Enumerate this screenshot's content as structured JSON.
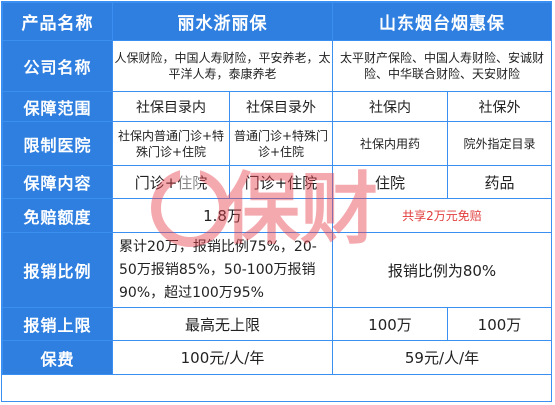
{
  "header": {
    "col0": "产品名称",
    "product_a": "丽水浙丽保",
    "product_b": "山东烟台烟惠保"
  },
  "rows": {
    "company": {
      "label": "公司名称",
      "a": "人保财险，中国人寿财险，平安养老，太平洋人寿，泰康养老",
      "b": "太平财产保险、中国人寿财险、安诚财险、中华联合财险、天安财险"
    },
    "scope": {
      "label": "保障范围",
      "a1": "社保目录内",
      "a2": "社保目录外",
      "b1": "社保内",
      "b2": "社保外"
    },
    "drugs": {
      "label": "限制医院",
      "a1": "社保内普通门诊+特殊门诊+住院",
      "a2": "普通门诊+特殊门诊+住院",
      "b1": "社保内用药",
      "b2": "院外指定目录"
    },
    "content": {
      "label": "保障内容",
      "a1": "门诊+住院",
      "a2": "门诊+住院",
      "b1": "住院",
      "b2": "药品"
    },
    "deductible": {
      "label": "免赔额度",
      "a": "1.8万",
      "b": "共享2万元免赔"
    },
    "ratio": {
      "label": "报销比例",
      "a": "累计20万，报销比例75%，20-50万报销85%，50-100万报销90%，超过100万95%",
      "b": "报销比例为80%"
    },
    "limit": {
      "label": "报销上限",
      "a": "最高无上限",
      "b1": "100万",
      "b2": "100万"
    },
    "premium": {
      "label": "保费",
      "a": "100元/人/年",
      "b": "59元/人/年"
    }
  },
  "watermark": "保财",
  "colors": {
    "header_blue": "#2f7fe0",
    "border_blue": "#3b8ff0",
    "red": "#e23c3c",
    "watermark": "#e8434f"
  }
}
